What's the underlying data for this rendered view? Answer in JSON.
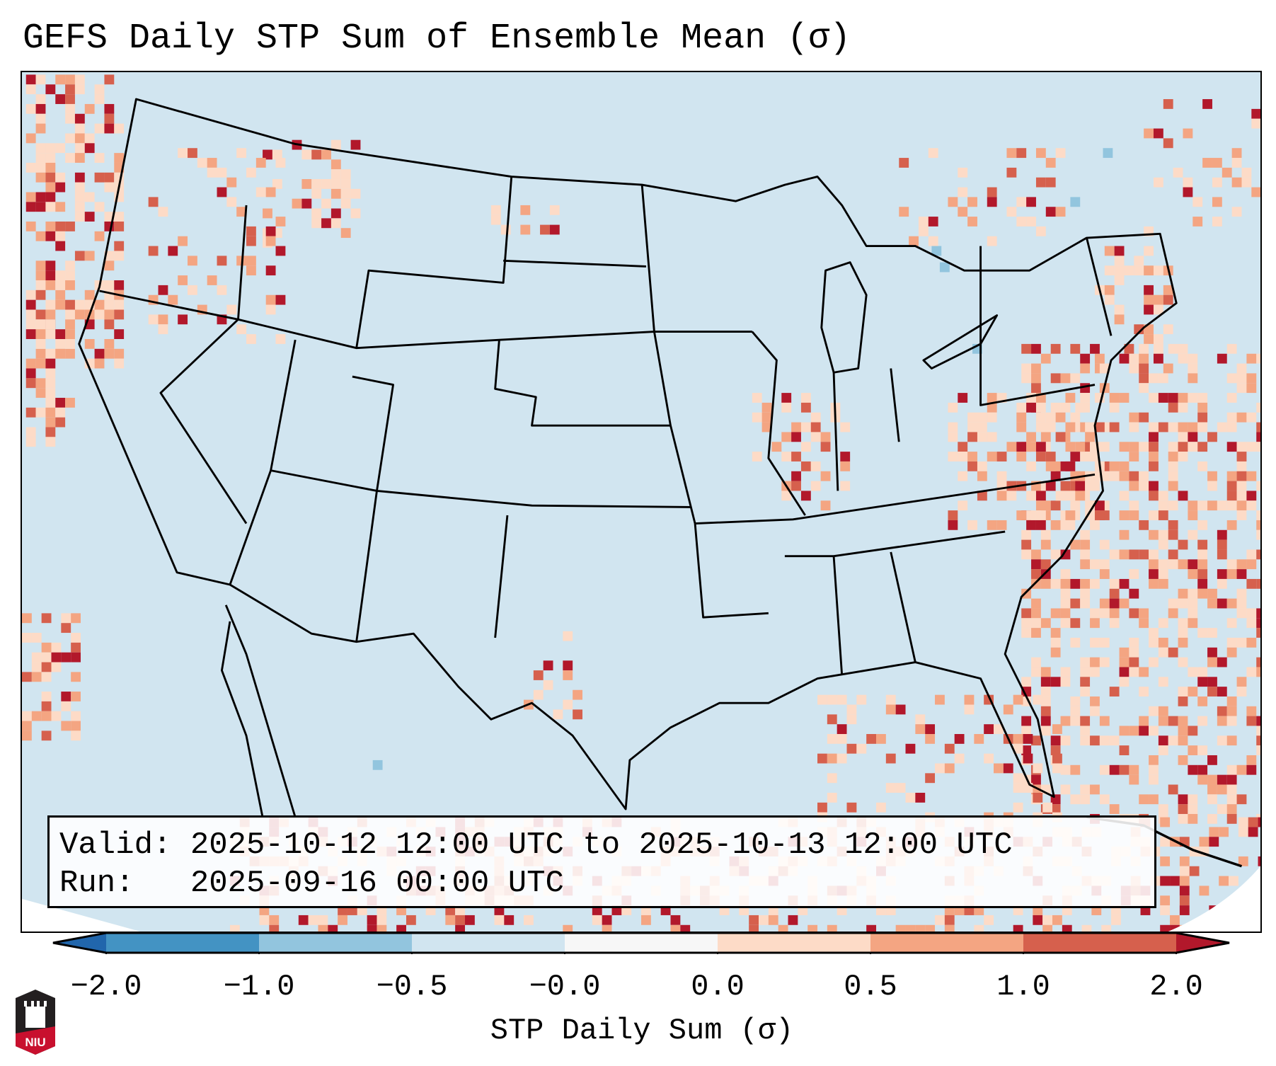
{
  "chart_data": {
    "type": "heatmap",
    "title": "GEFS Daily STP Sum of Ensemble Mean (σ)",
    "colorbar": {
      "label": "STP Daily Sum (σ)",
      "ticks": [
        "−2.0",
        "−1.0",
        "−0.5",
        "−0.0",
        "0.0",
        "0.5",
        "1.0",
        "2.0"
      ],
      "bounds": [
        -2.0,
        -1.0,
        -0.5,
        -0.0,
        0.0,
        0.5,
        1.0,
        2.0
      ],
      "colors": [
        "#4393c3",
        "#92c5de",
        "#d1e5f0",
        "#f7f7f7",
        "#fddbc7",
        "#f4a582",
        "#d6604d"
      ],
      "under_color": "#2166ac",
      "over_color": "#b2182b",
      "extend": "both"
    },
    "region": "Contiguous United States"
  },
  "info": {
    "valid_line": "Valid: 2025-10-12 12:00 UTC to 2025-10-13 12:00 UTC",
    "run_line": "Run:   2025-09-16 00:00 UTC"
  },
  "logo": {
    "text": "NIU"
  }
}
